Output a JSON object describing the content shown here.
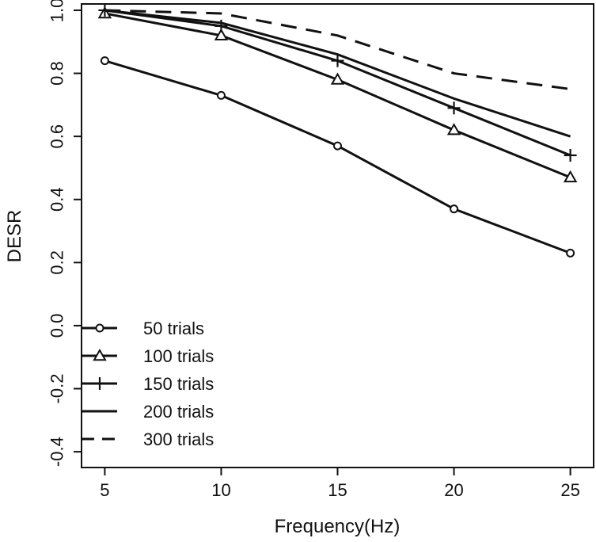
{
  "chart_data": {
    "type": "line",
    "title": "",
    "xlabel": "Frequency(Hz)",
    "ylabel": "DESR",
    "x": [
      5,
      10,
      15,
      20,
      25
    ],
    "xlim": [
      4,
      26
    ],
    "ylim": [
      -0.45,
      1.02
    ],
    "xticks": [
      5,
      10,
      15,
      20,
      25
    ],
    "yticks": [
      -0.4,
      -0.2,
      0.0,
      0.2,
      0.4,
      0.6,
      0.8,
      1.0
    ],
    "ytick_labels": [
      "-0.4",
      "-0.2",
      "0.0",
      "0.2",
      "0.4",
      "0.6",
      "0.8",
      "1.0"
    ],
    "xtick_labels": [
      "5",
      "10",
      "15",
      "20",
      "25"
    ],
    "grid": false,
    "legend_position": "bottom-left",
    "series": [
      {
        "name": "50 trials",
        "values": [
          0.84,
          0.73,
          0.57,
          0.37,
          0.23
        ],
        "marker": "circle",
        "dash": "solid"
      },
      {
        "name": "100 trials",
        "values": [
          0.99,
          0.92,
          0.78,
          0.62,
          0.47
        ],
        "marker": "triangle",
        "dash": "solid"
      },
      {
        "name": "150 trials",
        "values": [
          1.0,
          0.95,
          0.84,
          0.69,
          0.54
        ],
        "marker": "plus",
        "dash": "solid"
      },
      {
        "name": "200 trials",
        "values": [
          1.0,
          0.96,
          0.86,
          0.72,
          0.6
        ],
        "marker": "none",
        "dash": "solid"
      },
      {
        "name": "300 trials",
        "values": [
          1.0,
          0.99,
          0.92,
          0.8,
          0.75
        ],
        "marker": "none",
        "dash": "dashed"
      }
    ]
  }
}
